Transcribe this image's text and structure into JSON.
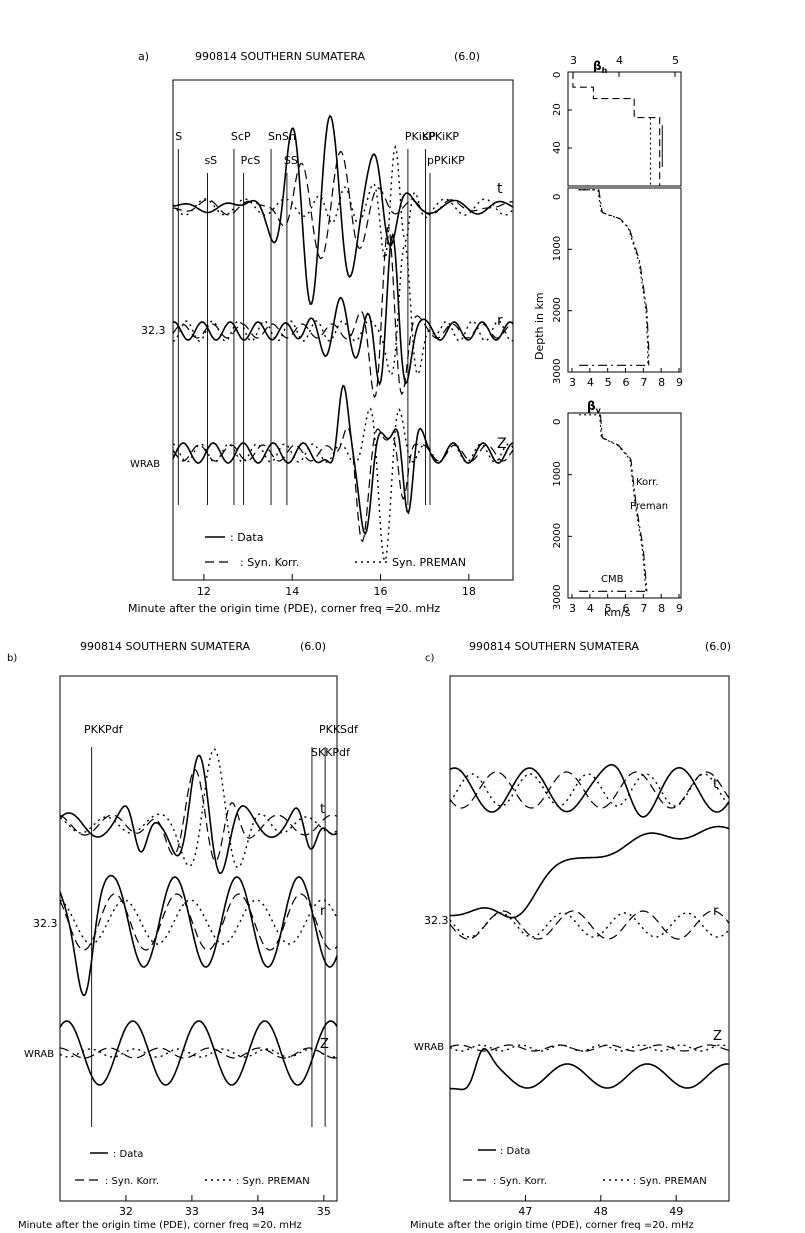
{
  "chart_data": [
    {
      "panel": "a)",
      "type": "line",
      "title": "990814 SOUTHERN SUMATERA",
      "magnitude": "(6.0)",
      "xlabel": "Minute after the origin time (PDE), corner freq   =20.   mHz",
      "xlim": [
        11.3,
        19.0
      ],
      "x_ticks": [
        "12",
        "14",
        "16",
        "18"
      ],
      "x_tick_values": [
        12,
        14,
        16,
        18
      ],
      "station": "WRAB",
      "amplitude_label": "32.3",
      "components": [
        "t",
        "r",
        "Z"
      ],
      "phases": [
        {
          "name": "S",
          "t": 11.42,
          "row": 0
        },
        {
          "name": "sS",
          "t": 12.08,
          "row": 1
        },
        {
          "name": "ScP",
          "t": 12.68,
          "row": 0
        },
        {
          "name": "PcS",
          "t": 12.9,
          "row": 1
        },
        {
          "name": "SnSn",
          "t": 13.52,
          "row": 0
        },
        {
          "name": "SS",
          "t": 13.88,
          "row": 1
        },
        {
          "name": "PKiKP",
          "t": 16.62,
          "row": 0
        },
        {
          "name": "sPKiKP",
          "t": 17.02,
          "row": 0
        },
        {
          "name": "pPKiKP",
          "t": 17.12,
          "row": 1
        }
      ],
      "legend": [
        "— : Data",
        "— – : Syn. Korr.",
        "· · · : Syn. PREMAN"
      ],
      "legend_text": [
        ": Data",
        ": Syn. Korr.",
        "Syn. PREMAN"
      ],
      "series": [
        {
          "name": "Data",
          "component": "t",
          "style": "solid"
        },
        {
          "name": "Syn. Korr.",
          "component": "t",
          "style": "dashed"
        },
        {
          "name": "Syn. PREMAN",
          "component": "t",
          "style": "dotted"
        }
      ]
    },
    {
      "panel": "a) inset",
      "type": "line",
      "title": "βh",
      "title_sub": "h",
      "x_top_ticks": [
        "3",
        "4",
        "5"
      ],
      "x_top_tick_values": [
        3,
        4,
        5
      ],
      "crust_depth_ticks": [
        "0",
        "20",
        "40"
      ],
      "crust_depth_values": [
        0,
        20,
        40
      ],
      "mantle_depth_ticks": [
        "0",
        "1000",
        "2000",
        "3000"
      ],
      "mantle_depth_values": [
        0,
        1000,
        2000,
        3000
      ],
      "x_ticks": [
        "3",
        "4",
        "5",
        "6",
        "7",
        "8",
        "9"
      ],
      "x_tick_values": [
        3,
        4,
        5,
        6,
        7,
        8,
        9
      ],
      "ylabel": "Depth in km",
      "xlabel": "km/s",
      "bv_title": "βv",
      "bv_sub": "v",
      "model_labels": [
        "Korr.",
        "Preman"
      ],
      "cmb_label": "CMB",
      "crust_korr": [
        [
          3.0,
          0
        ],
        [
          3.0,
          8
        ],
        [
          3.4,
          8
        ],
        [
          3.4,
          14
        ],
        [
          4.2,
          14
        ],
        [
          4.2,
          24
        ],
        [
          4.7,
          24
        ],
        [
          4.7,
          60
        ]
      ],
      "crust_prem": [
        [
          4.52,
          24
        ],
        [
          4.52,
          60
        ]
      ],
      "mantle_korr_h": [
        [
          3.4,
          30
        ],
        [
          4.5,
          30
        ],
        [
          4.7,
          400
        ],
        [
          5.7,
          500
        ],
        [
          6.2,
          650
        ],
        [
          6.8,
          1200
        ],
        [
          7.2,
          2000
        ],
        [
          7.3,
          2600
        ],
        [
          7.3,
          2891
        ]
      ],
      "mantle_korr_v": [
        [
          4.6,
          30
        ],
        [
          4.7,
          400
        ],
        [
          5.6,
          520
        ],
        [
          6.3,
          750
        ],
        [
          6.6,
          1500
        ],
        [
          7.0,
          2200
        ],
        [
          7.2,
          2891
        ]
      ],
      "cmb_depth": 2891
    },
    {
      "panel": "b)",
      "type": "line",
      "title": "990814 SOUTHERN SUMATERA",
      "magnitude": "(6.0)",
      "xlabel": "Minute after the origin time (PDE), corner freq   =20.   mHz",
      "xlim": [
        31.0,
        35.2
      ],
      "x_ticks": [
        "32",
        "33",
        "34",
        "35"
      ],
      "x_tick_values": [
        32,
        33,
        34,
        35
      ],
      "station": "WRAB",
      "amplitude_label": "32.3",
      "components": [
        "t",
        "r",
        "Z"
      ],
      "phases": [
        {
          "name": "PKKPdf",
          "t": 31.48
        },
        {
          "name": "SKKPdf",
          "t": 34.82
        },
        {
          "name": "PKKSdf",
          "t": 35.02
        }
      ],
      "legend_text": [
        ": Data",
        ": Syn. Korr.",
        ": Syn. PREMAN"
      ]
    },
    {
      "panel": "c)",
      "type": "line",
      "title": "990814 SOUTHERN SUMATERA",
      "magnitude": "(6.0)",
      "xlabel": "Minute after the origin time (PDE), corner freq   =20.   mHz",
      "xlim": [
        46.0,
        49.7
      ],
      "x_ticks": [
        "47",
        "48",
        "49"
      ],
      "x_tick_values": [
        47,
        48,
        49
      ],
      "station": "WRAB",
      "amplitude_label": "32.3",
      "components": [
        "t",
        "r",
        "Z"
      ],
      "phases": [],
      "legend_text": [
        ": Data",
        ": Syn. Korr.",
        ": Syn. PREMAN"
      ]
    }
  ],
  "styles": {
    "line_color": "#000000",
    "background": "#ffffff"
  }
}
